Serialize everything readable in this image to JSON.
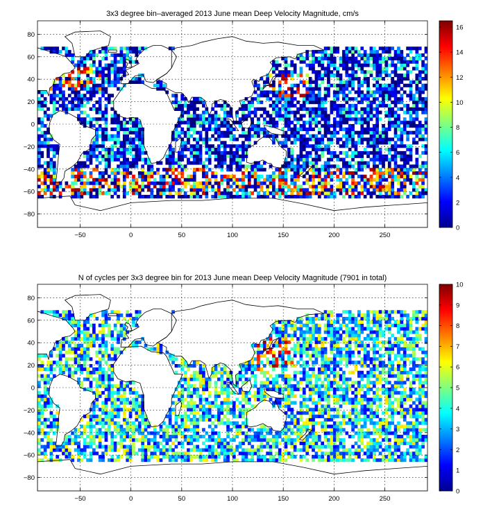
{
  "chart_data": [
    {
      "type": "heatmap",
      "title": "3x3 degree bin–averaged 2013 June mean Deep Velocity Magnitude, cm/s",
      "xlabel": "",
      "ylabel": "",
      "xlim": [
        -92,
        292
      ],
      "ylim": [
        -92,
        92
      ],
      "x_ticks": [
        -50,
        0,
        50,
        100,
        150,
        200,
        250
      ],
      "y_ticks": [
        -80,
        -60,
        -40,
        -20,
        0,
        20,
        40,
        60,
        80
      ],
      "grid": true,
      "bin_size_deg": 3,
      "colorbar": {
        "min": 0,
        "max": 16.5,
        "ticks": [
          0,
          2,
          4,
          6,
          8,
          10,
          12,
          14,
          16
        ],
        "colormap": "jet"
      },
      "legend": "none"
    },
    {
      "type": "heatmap",
      "title": "N of cycles per 3x3 degree bin for 2013 June mean Deep Velocity Magnitude (7901 in total)",
      "xlabel": "",
      "ylabel": "",
      "xlim": [
        -92,
        292
      ],
      "ylim": [
        -92,
        92
      ],
      "x_ticks": [
        -50,
        0,
        50,
        100,
        150,
        200,
        250
      ],
      "y_ticks": [
        -80,
        -60,
        -40,
        -20,
        0,
        20,
        40,
        60,
        80
      ],
      "grid": true,
      "bin_size_deg": 3,
      "colorbar": {
        "min": 0,
        "max": 10,
        "ticks": [
          0,
          1,
          2,
          3,
          4,
          5,
          6,
          7,
          8,
          9,
          10
        ],
        "colormap": "jet"
      },
      "legend": "none"
    }
  ]
}
